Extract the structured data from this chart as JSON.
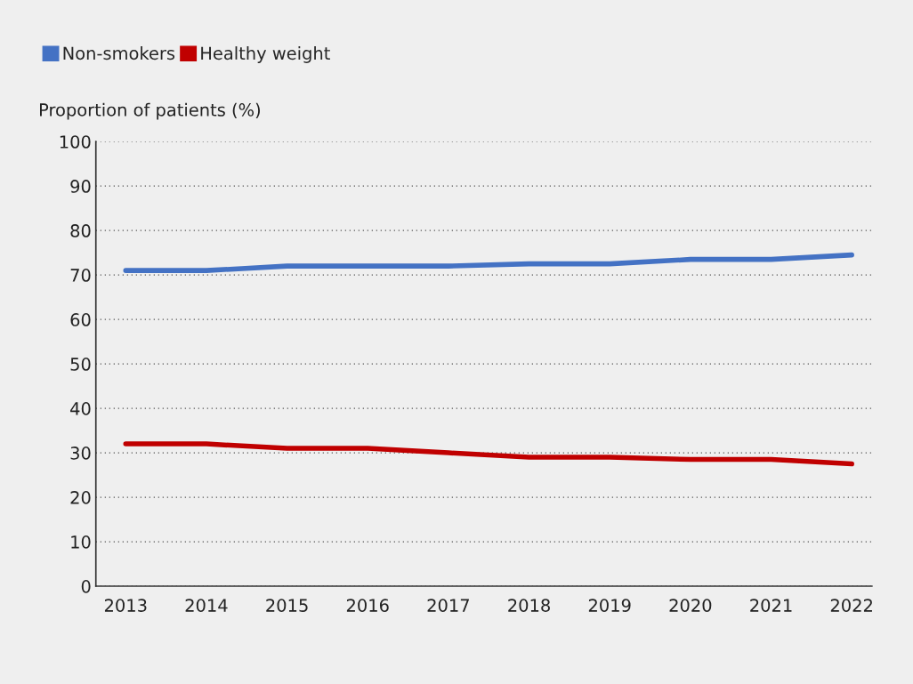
{
  "chart_data": {
    "type": "line",
    "ylabel": "Proportion of patients (%)",
    "categories": [
      "2013",
      "2014",
      "2015",
      "2016",
      "2017",
      "2018",
      "2019",
      "2020",
      "2021",
      "2022"
    ],
    "series": [
      {
        "name": "Non-smokers",
        "color": "#4472c4",
        "values": [
          71,
          71,
          72,
          72,
          72,
          72.5,
          72.5,
          73.5,
          73.5,
          74.5
        ]
      },
      {
        "name": "Healthy weight",
        "color": "#c00000",
        "values": [
          32,
          32,
          31,
          31,
          30,
          29,
          29,
          28.5,
          28.5,
          27.5
        ]
      }
    ],
    "ylim": [
      0,
      100
    ],
    "yticks": [
      0,
      10,
      20,
      30,
      40,
      50,
      60,
      70,
      80,
      90,
      100
    ],
    "grid": "y",
    "legend": "top left",
    "marker": "none",
    "line_style": "solid"
  }
}
